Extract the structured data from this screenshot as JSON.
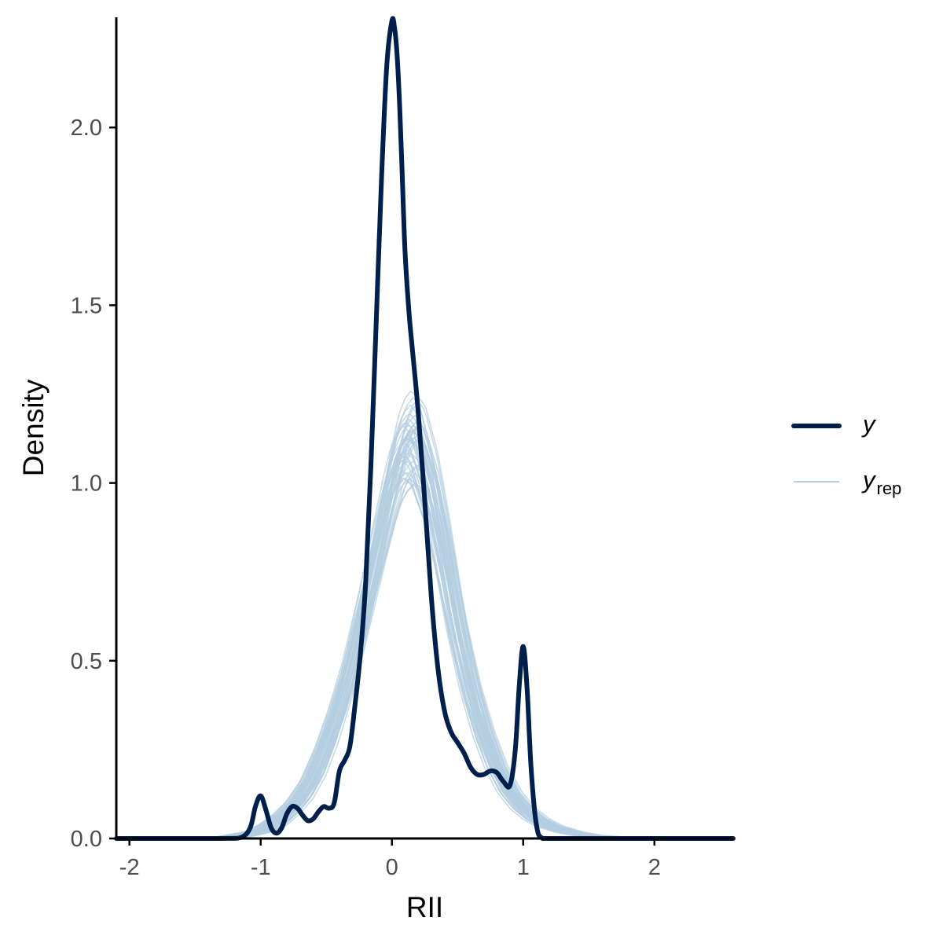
{
  "chart_data": {
    "type": "line",
    "title": "",
    "xlabel": "RII",
    "ylabel": "Density",
    "xlim": [
      -2.1,
      2.6
    ],
    "ylim": [
      0,
      2.31
    ],
    "x_ticks": [
      {
        "value": -2,
        "label": "-2"
      },
      {
        "value": -1,
        "label": "-1"
      },
      {
        "value": 0,
        "label": "0"
      },
      {
        "value": 1,
        "label": "1"
      },
      {
        "value": 2,
        "label": "2"
      }
    ],
    "y_ticks": [
      {
        "value": 0,
        "label": "0.0"
      },
      {
        "value": 0.5,
        "label": "0.5"
      },
      {
        "value": 1,
        "label": "1.0"
      },
      {
        "value": 1.5,
        "label": "1.5"
      },
      {
        "value": 2,
        "label": "2.0"
      }
    ],
    "grid": false,
    "legend_position": "right",
    "legend": [
      {
        "key": "y",
        "symbol": "y",
        "subscript": ""
      },
      {
        "key": "yrep",
        "symbol": "y",
        "subscript": "rep"
      }
    ],
    "colors": {
      "y": "#011f4b",
      "yrep": "#b3cde0",
      "axis": "#000000",
      "tick_text": "#4d4d4d"
    },
    "series": [
      {
        "name": "y",
        "x": [
          -2.1,
          -1.3,
          -1.15,
          -1.08,
          -1.04,
          -1.0,
          -0.96,
          -0.92,
          -0.88,
          -0.84,
          -0.8,
          -0.76,
          -0.72,
          -0.68,
          -0.64,
          -0.6,
          -0.56,
          -0.52,
          -0.48,
          -0.44,
          -0.4,
          -0.36,
          -0.32,
          -0.28,
          -0.24,
          -0.2,
          -0.16,
          -0.12,
          -0.08,
          -0.04,
          0.0,
          0.02,
          0.04,
          0.06,
          0.08,
          0.1,
          0.13,
          0.16,
          0.2,
          0.25,
          0.3,
          0.35,
          0.4,
          0.45,
          0.5,
          0.55,
          0.6,
          0.65,
          0.7,
          0.75,
          0.8,
          0.85,
          0.9,
          0.94,
          0.97,
          1.0,
          1.03,
          1.06,
          1.1,
          1.15,
          1.3,
          2.6
        ],
        "y": [
          0,
          0,
          0.003,
          0.03,
          0.09,
          0.12,
          0.08,
          0.03,
          0.015,
          0.03,
          0.07,
          0.09,
          0.085,
          0.065,
          0.05,
          0.055,
          0.075,
          0.09,
          0.085,
          0.1,
          0.19,
          0.22,
          0.26,
          0.38,
          0.52,
          0.72,
          1.05,
          1.45,
          1.85,
          2.17,
          2.3,
          2.28,
          2.2,
          2.05,
          1.85,
          1.65,
          1.48,
          1.36,
          1.2,
          0.95,
          0.68,
          0.48,
          0.36,
          0.3,
          0.27,
          0.24,
          0.2,
          0.18,
          0.18,
          0.19,
          0.185,
          0.16,
          0.15,
          0.25,
          0.43,
          0.54,
          0.42,
          0.2,
          0.04,
          0.0,
          0,
          0
        ]
      },
      {
        "name": "yrep",
        "x": [
          -2.1,
          -1.2,
          -1.0,
          -0.9,
          -0.8,
          -0.7,
          -0.6,
          -0.5,
          -0.4,
          -0.3,
          -0.2,
          -0.1,
          0.0,
          0.05,
          0.1,
          0.15,
          0.2,
          0.3,
          0.4,
          0.5,
          0.6,
          0.7,
          0.8,
          0.9,
          1.0,
          1.1,
          1.2,
          1.35,
          1.5,
          1.7,
          2.0,
          2.6
        ],
        "y": [
          0,
          0.005,
          0.02,
          0.04,
          0.07,
          0.11,
          0.17,
          0.26,
          0.37,
          0.5,
          0.66,
          0.83,
          0.99,
          1.06,
          1.1,
          1.12,
          1.1,
          0.98,
          0.8,
          0.6,
          0.43,
          0.3,
          0.2,
          0.13,
          0.085,
          0.055,
          0.035,
          0.018,
          0.008,
          0.003,
          0,
          0
        ]
      }
    ]
  }
}
